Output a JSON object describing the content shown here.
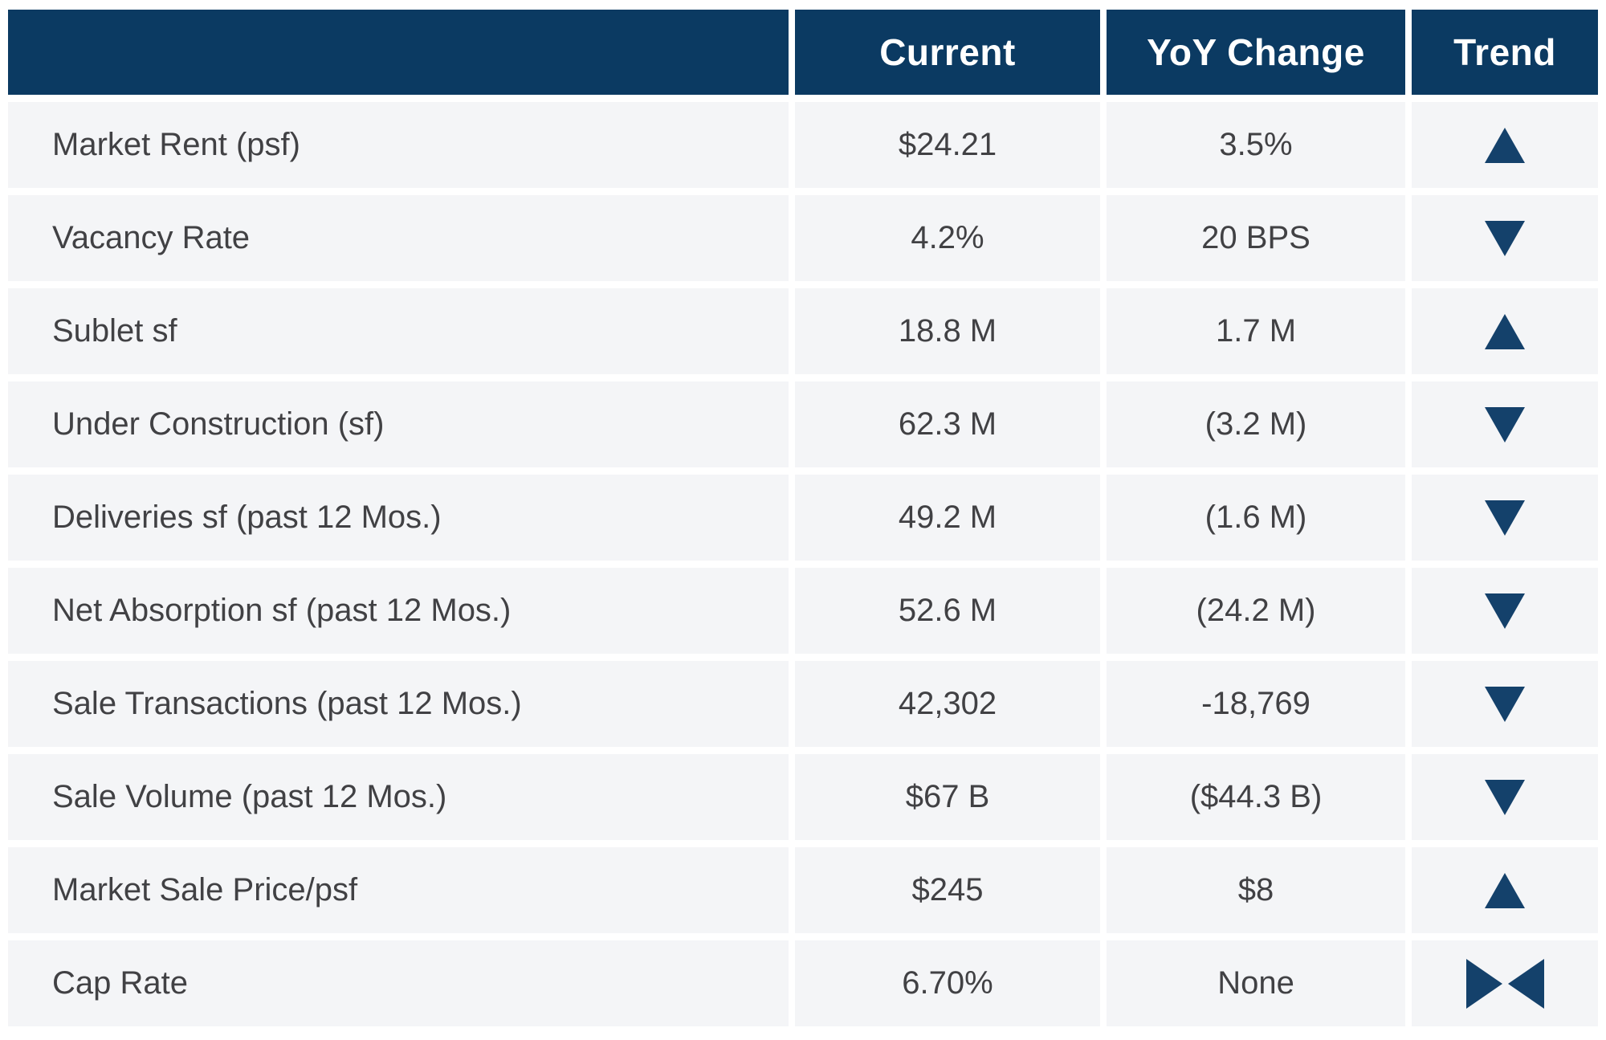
{
  "colors": {
    "header_bg": "#0b3a62",
    "trend_icon": "#14416b",
    "row_bg": "#f4f5f7",
    "text": "#414144",
    "header_text": "#ffffff"
  },
  "chart_data": {
    "type": "table",
    "columns": [
      "",
      "Current",
      "YoY Change",
      "Trend"
    ],
    "rows": [
      {
        "label": "Market Rent (psf)",
        "current": "$24.21",
        "yoy_change": "3.5%",
        "trend": "up"
      },
      {
        "label": "Vacancy Rate",
        "current": "4.2%",
        "yoy_change": "20 BPS",
        "trend": "down"
      },
      {
        "label": "Sublet sf",
        "current": "18.8 M",
        "yoy_change": "1.7 M",
        "trend": "up"
      },
      {
        "label": "Under Construction (sf)",
        "current": "62.3 M",
        "yoy_change": "(3.2 M)",
        "trend": "down"
      },
      {
        "label": "Deliveries sf (past 12 Mos.)",
        "current": "49.2 M",
        "yoy_change": "(1.6 M)",
        "trend": "down"
      },
      {
        "label": "Net Absorption sf (past 12 Mos.)",
        "current": "52.6 M",
        "yoy_change": "(24.2 M)",
        "trend": "down"
      },
      {
        "label": "Sale Transactions (past 12 Mos.)",
        "current": "42,302",
        "yoy_change": "-18,769",
        "trend": "down"
      },
      {
        "label": "Sale Volume (past 12 Mos.)",
        "current": "$67 B",
        "yoy_change": "($44.3 B)",
        "trend": "down"
      },
      {
        "label": "Market Sale Price/psf",
        "current": "$245",
        "yoy_change": "$8",
        "trend": "up"
      },
      {
        "label": "Cap Rate",
        "current": "6.70%",
        "yoy_change": "None",
        "trend": "flat"
      }
    ]
  }
}
